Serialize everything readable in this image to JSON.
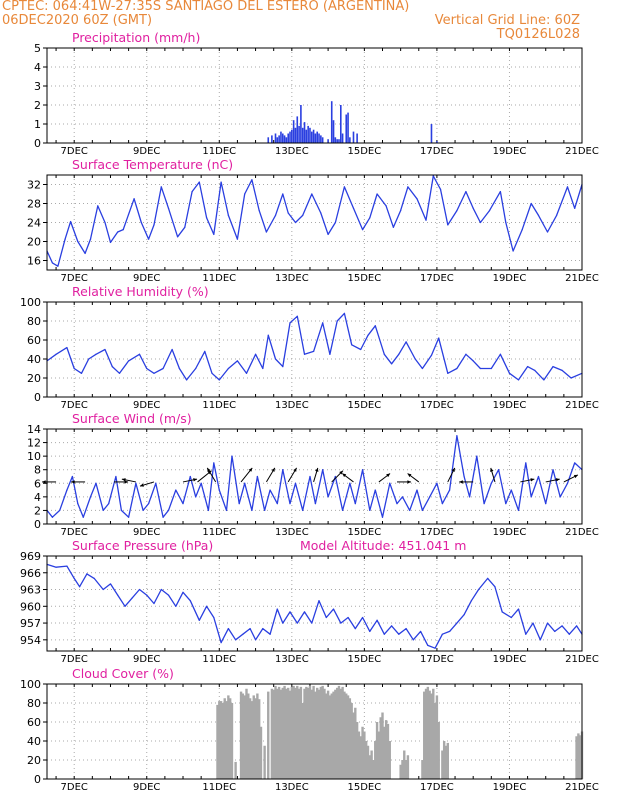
{
  "header": {
    "line1_left": "CPTEC:   064:41W-27:35S   SANTIAGO DEL ESTERO (ARGENTINA)",
    "line2_left": "06DEC2020 60Z (GMT)",
    "line2_right": "Vertical Grid Line: 60Z",
    "line3_right": "TQ0126L028"
  },
  "colors": {
    "header": "#e8883a",
    "panel_title": "#e020a0",
    "series_line": "#2a3fe0",
    "precip_bar": "#2a3fe0",
    "cloud_bar": "#a8a8a8",
    "grid": "#aaaaaa"
  },
  "chart_data": [
    {
      "type": "bar",
      "title": "Precipitation (mm/h)",
      "ylim": [
        0,
        5
      ],
      "yticks": [
        0,
        1,
        2,
        3,
        4,
        5
      ],
      "xlim": [
        6.25,
        21
      ],
      "xticks": [
        7,
        9,
        11,
        13,
        15,
        17,
        19,
        21
      ],
      "xticklabels": [
        "7DEC",
        "9DEC",
        "11DEC",
        "13DEC",
        "15DEC",
        "17DEC",
        "19DEC",
        "21DEC"
      ],
      "grid": true,
      "x": [
        12.35,
        12.45,
        12.55,
        12.6,
        12.65,
        12.7,
        12.75,
        12.8,
        12.85,
        12.9,
        12.95,
        13.0,
        13.05,
        13.1,
        13.15,
        13.2,
        13.25,
        13.3,
        13.35,
        13.4,
        13.45,
        13.5,
        13.55,
        13.6,
        13.65,
        13.7,
        13.75,
        13.8,
        13.85,
        14.0,
        14.1,
        14.15,
        14.2,
        14.25,
        14.3,
        14.35,
        14.4,
        14.5,
        14.55,
        14.6,
        14.7,
        14.8,
        16.85,
        17.0
      ],
      "values": [
        0.3,
        0.4,
        0.5,
        0.3,
        0.4,
        0.6,
        0.5,
        0.4,
        0.3,
        0.5,
        0.6,
        0.7,
        1.2,
        0.8,
        1.4,
        0.9,
        2.0,
        0.8,
        1.1,
        0.7,
        0.9,
        0.8,
        0.6,
        0.7,
        0.5,
        0.6,
        0.5,
        0.4,
        0.3,
        0.2,
        2.2,
        1.2,
        0.3,
        0.2,
        0.2,
        2.0,
        0.5,
        1.5,
        1.6,
        0.3,
        0.6,
        0.5,
        1.0,
        0.1
      ]
    },
    {
      "type": "line",
      "title": "Surface Temperature (nC)",
      "ylim": [
        14,
        34
      ],
      "yticks": [
        16,
        20,
        24,
        28,
        32
      ],
      "xlim": [
        6.25,
        21
      ],
      "xticks": [
        7,
        9,
        11,
        13,
        15,
        17,
        19,
        21
      ],
      "xticklabels": [
        "7DEC",
        "9DEC",
        "11DEC",
        "13DEC",
        "15DEC",
        "17DEC",
        "19DEC",
        "21DEC"
      ],
      "grid": true,
      "x": [
        6.25,
        6.4,
        6.55,
        6.75,
        6.9,
        7.1,
        7.3,
        7.45,
        7.65,
        7.85,
        8.0,
        8.2,
        8.35,
        8.65,
        8.85,
        9.05,
        9.2,
        9.4,
        9.6,
        9.85,
        10.05,
        10.25,
        10.45,
        10.65,
        10.85,
        11.05,
        11.25,
        11.5,
        11.7,
        11.9,
        12.1,
        12.3,
        12.55,
        12.75,
        12.9,
        13.1,
        13.3,
        13.55,
        13.8,
        14.0,
        14.2,
        14.45,
        14.7,
        14.95,
        15.15,
        15.35,
        15.6,
        15.8,
        16.0,
        16.2,
        16.45,
        16.7,
        16.9,
        17.1,
        17.3,
        17.55,
        17.8,
        18.0,
        18.2,
        18.45,
        18.75,
        18.9,
        19.1,
        19.35,
        19.6,
        19.8,
        20.05,
        20.3,
        20.6,
        20.8,
        21.0
      ],
      "values": [
        18,
        15.5,
        14.8,
        20.5,
        24.2,
        20,
        17.5,
        20.5,
        27.5,
        24,
        19.8,
        22,
        22.5,
        29,
        24,
        20.5,
        23.5,
        31.5,
        27,
        21,
        23,
        30.5,
        32.5,
        25,
        21.5,
        32.5,
        25.5,
        20.5,
        30,
        33,
        26.5,
        22,
        25.5,
        30,
        26,
        24,
        25.5,
        30,
        26,
        21.5,
        24,
        31.5,
        27,
        22.5,
        25,
        30,
        27.5,
        23,
        26.5,
        31.5,
        29,
        24.5,
        33.8,
        31,
        23.5,
        26.5,
        30.5,
        27,
        24,
        26.5,
        30.5,
        24,
        18,
        22.5,
        28,
        25.5,
        22,
        25.5,
        31.5,
        27,
        32
      ]
    },
    {
      "type": "line",
      "title": "Relative Humidity (%)",
      "ylim": [
        0,
        100
      ],
      "yticks": [
        0,
        20,
        40,
        60,
        80,
        100
      ],
      "xlim": [
        6.25,
        21
      ],
      "xticks": [
        7,
        9,
        11,
        13,
        15,
        17,
        19,
        21
      ],
      "xticklabels": [
        "7DEC",
        "9DEC",
        "11DEC",
        "13DEC",
        "15DEC",
        "17DEC",
        "19DEC",
        "21DEC"
      ],
      "grid": true,
      "x": [
        6.25,
        6.5,
        6.8,
        7.0,
        7.2,
        7.4,
        7.6,
        7.85,
        8.05,
        8.25,
        8.5,
        8.8,
        9.0,
        9.2,
        9.45,
        9.7,
        9.9,
        10.1,
        10.35,
        10.6,
        10.8,
        11.0,
        11.25,
        11.5,
        11.75,
        12.0,
        12.2,
        12.35,
        12.55,
        12.75,
        12.95,
        13.15,
        13.35,
        13.6,
        13.85,
        14.05,
        14.25,
        14.45,
        14.65,
        14.9,
        15.1,
        15.3,
        15.55,
        15.75,
        15.95,
        16.15,
        16.4,
        16.6,
        16.85,
        17.05,
        17.3,
        17.55,
        17.8,
        18.0,
        18.2,
        18.5,
        18.75,
        19.0,
        19.25,
        19.5,
        19.7,
        19.95,
        20.2,
        20.45,
        20.7,
        21.0
      ],
      "values": [
        38,
        45,
        52,
        30,
        25,
        40,
        45,
        50,
        32,
        25,
        38,
        45,
        30,
        25,
        30,
        50,
        30,
        18,
        30,
        48,
        25,
        18,
        30,
        38,
        25,
        45,
        30,
        65,
        40,
        32,
        78,
        85,
        45,
        48,
        78,
        45,
        80,
        88,
        55,
        50,
        65,
        75,
        45,
        35,
        45,
        58,
        40,
        30,
        44,
        62,
        25,
        30,
        45,
        38,
        30,
        30,
        45,
        25,
        18,
        32,
        28,
        18,
        32,
        28,
        20,
        25
      ]
    },
    {
      "type": "line",
      "title": "Surface Wind (m/s)",
      "ylim": [
        0,
        14
      ],
      "yticks": [
        0,
        2,
        4,
        6,
        8,
        10,
        12,
        14
      ],
      "xlim": [
        6.25,
        21
      ],
      "xticks": [
        7,
        9,
        11,
        13,
        15,
        17,
        19,
        21
      ],
      "xticklabels": [
        "7DEC",
        "9DEC",
        "11DEC",
        "13DEC",
        "15DEC",
        "17DEC",
        "19DEC",
        "21DEC"
      ],
      "grid": true,
      "x": [
        6.25,
        6.4,
        6.6,
        6.8,
        6.95,
        7.1,
        7.25,
        7.45,
        7.6,
        7.8,
        7.95,
        8.15,
        8.3,
        8.5,
        8.7,
        8.9,
        9.05,
        9.25,
        9.45,
        9.6,
        9.8,
        10.0,
        10.2,
        10.35,
        10.5,
        10.7,
        10.85,
        11.0,
        11.2,
        11.35,
        11.55,
        11.7,
        11.9,
        12.05,
        12.25,
        12.4,
        12.6,
        12.75,
        12.95,
        13.1,
        13.3,
        13.5,
        13.65,
        13.85,
        14.0,
        14.2,
        14.4,
        14.6,
        14.75,
        14.95,
        15.15,
        15.3,
        15.5,
        15.7,
        15.9,
        16.05,
        16.25,
        16.45,
        16.6,
        16.8,
        17.0,
        17.15,
        17.35,
        17.55,
        17.75,
        17.9,
        18.1,
        18.3,
        18.5,
        18.7,
        18.9,
        19.05,
        19.25,
        19.45,
        19.6,
        19.8,
        20.0,
        20.2,
        20.4,
        20.6,
        20.8,
        21.0
      ],
      "values": [
        2,
        1,
        2,
        5,
        7,
        3,
        1,
        4,
        6,
        2,
        3,
        7,
        2,
        1,
        6,
        2,
        3,
        6,
        1,
        2,
        5,
        3,
        7,
        4,
        6,
        2,
        9,
        5,
        2,
        10,
        3,
        6,
        2,
        7,
        2,
        5,
        3,
        8,
        3,
        6,
        2,
        7,
        3,
        8,
        4,
        7,
        2,
        6,
        3,
        8,
        2,
        5,
        1,
        6,
        3,
        4,
        2,
        5,
        2,
        4,
        6,
        3,
        5,
        13,
        7,
        4,
        10,
        3,
        6,
        8,
        3,
        5,
        2,
        9,
        4,
        7,
        3,
        8,
        4,
        6,
        9,
        8
      ],
      "vectors": [
        {
          "x": 6.5,
          "u": -1,
          "v": 0
        },
        {
          "x": 7.3,
          "u": -1,
          "v": 0
        },
        {
          "x": 8.1,
          "u": 1,
          "v": 0
        },
        {
          "x": 8.7,
          "u": -1,
          "v": 0.2
        },
        {
          "x": 9.2,
          "u": -1,
          "v": -0.3
        },
        {
          "x": 10.0,
          "u": 1,
          "v": 0.2
        },
        {
          "x": 10.4,
          "u": 1,
          "v": 0.8
        },
        {
          "x": 10.9,
          "u": -0.6,
          "v": 1
        },
        {
          "x": 11.6,
          "u": 0.8,
          "v": 1
        },
        {
          "x": 12.3,
          "u": 0.6,
          "v": 1
        },
        {
          "x": 12.9,
          "u": 0.6,
          "v": 1
        },
        {
          "x": 13.6,
          "u": 0.3,
          "v": 1
        },
        {
          "x": 14.1,
          "u": 0.8,
          "v": 0.8
        },
        {
          "x": 14.7,
          "u": -0.8,
          "v": 0.6
        },
        {
          "x": 15.4,
          "u": 0.8,
          "v": 0.6
        },
        {
          "x": 15.9,
          "u": 1,
          "v": 0
        },
        {
          "x": 16.5,
          "u": -0.8,
          "v": 0.6
        },
        {
          "x": 17.3,
          "u": 0.5,
          "v": 1
        },
        {
          "x": 18.0,
          "u": -1,
          "v": 0
        },
        {
          "x": 18.6,
          "u": -0.3,
          "v": 1
        },
        {
          "x": 19.3,
          "u": 1,
          "v": 0.2
        },
        {
          "x": 20.0,
          "u": 1,
          "v": 0.2
        },
        {
          "x": 20.5,
          "u": 1,
          "v": 0.5
        }
      ]
    },
    {
      "type": "line",
      "title": "Surface Pressure (hPa)",
      "annotation": "Model Altitude: 451.041 m",
      "ylim": [
        952,
        969
      ],
      "yticks": [
        954,
        957,
        960,
        963,
        966,
        969
      ],
      "xlim": [
        6.25,
        21
      ],
      "xticks": [
        7,
        9,
        11,
        13,
        15,
        17,
        19,
        21
      ],
      "xticklabels": [
        "7DEC",
        "9DEC",
        "11DEC",
        "13DEC",
        "15DEC",
        "17DEC",
        "19DEC",
        "21DEC"
      ],
      "grid": true,
      "x": [
        6.25,
        6.5,
        6.8,
        7.0,
        7.15,
        7.35,
        7.55,
        7.8,
        8.0,
        8.2,
        8.4,
        8.6,
        8.8,
        9.0,
        9.2,
        9.4,
        9.6,
        9.8,
        10.0,
        10.2,
        10.45,
        10.65,
        10.85,
        11.05,
        11.25,
        11.45,
        11.65,
        11.85,
        12.0,
        12.2,
        12.4,
        12.6,
        12.75,
        12.95,
        13.15,
        13.35,
        13.55,
        13.75,
        13.95,
        14.15,
        14.35,
        14.55,
        14.75,
        14.95,
        15.15,
        15.35,
        15.55,
        15.75,
        15.95,
        16.15,
        16.35,
        16.55,
        16.75,
        16.95,
        17.15,
        17.35,
        17.55,
        17.75,
        17.95,
        18.15,
        18.4,
        18.6,
        18.8,
        19.05,
        19.25,
        19.45,
        19.65,
        19.85,
        20.05,
        20.25,
        20.45,
        20.65,
        20.85,
        21.0
      ],
      "values": [
        967.5,
        967,
        967.2,
        965,
        963.5,
        965.8,
        965,
        963,
        964,
        962,
        960,
        961.5,
        963,
        962,
        960.5,
        963,
        962,
        960,
        962.5,
        961,
        957.5,
        960,
        958,
        953.5,
        956,
        954,
        955,
        956,
        954,
        956,
        955,
        959.5,
        957,
        959,
        957,
        959,
        957,
        961,
        958,
        959.5,
        957,
        958,
        956,
        958,
        955.5,
        957.5,
        955,
        956.5,
        955,
        956,
        954,
        955.5,
        953,
        952.5,
        955,
        955.5,
        957,
        958.5,
        961,
        963,
        965,
        963.5,
        959,
        958,
        959.5,
        955,
        957,
        954,
        957,
        955.5,
        956.5,
        955,
        956.5,
        955
      ]
    },
    {
      "type": "bar",
      "title": "Cloud Cover (%)",
      "ylim": [
        0,
        100
      ],
      "yticks": [
        0,
        20,
        40,
        60,
        80,
        100
      ],
      "xlim": [
        6.25,
        21
      ],
      "xticks": [
        7,
        9,
        11,
        13,
        15,
        17,
        19,
        21
      ],
      "xticklabels": [
        "7DEC",
        "9DEC",
        "11DEC",
        "13DEC",
        "15DEC",
        "17DEC",
        "19DEC",
        "21DEC"
      ],
      "grid": true,
      "x": [
        10.95,
        11.0,
        11.05,
        11.1,
        11.15,
        11.2,
        11.25,
        11.3,
        11.35,
        11.45,
        11.6,
        11.65,
        11.7,
        11.75,
        11.8,
        11.85,
        11.9,
        11.95,
        12.0,
        12.05,
        12.1,
        12.15,
        12.25,
        12.35,
        12.45,
        12.5,
        12.55,
        12.6,
        12.65,
        12.7,
        12.75,
        12.8,
        12.85,
        12.9,
        12.95,
        13.0,
        13.05,
        13.1,
        13.15,
        13.2,
        13.25,
        13.3,
        13.35,
        13.4,
        13.45,
        13.5,
        13.55,
        13.6,
        13.65,
        13.7,
        13.75,
        13.8,
        13.85,
        13.9,
        13.95,
        14.0,
        14.05,
        14.1,
        14.15,
        14.2,
        14.25,
        14.3,
        14.35,
        14.4,
        14.45,
        14.5,
        14.55,
        14.6,
        14.65,
        14.7,
        14.75,
        14.8,
        14.85,
        14.9,
        14.95,
        15.0,
        15.05,
        15.1,
        15.15,
        15.2,
        15.25,
        15.3,
        15.35,
        15.4,
        15.45,
        15.5,
        15.55,
        15.6,
        15.65,
        15.7,
        16.0,
        16.05,
        16.1,
        16.15,
        16.2,
        16.6,
        16.65,
        16.7,
        16.75,
        16.8,
        16.85,
        16.9,
        16.95,
        17.0,
        17.05,
        17.15,
        17.2,
        17.25,
        17.3,
        20.85,
        20.9,
        20.95,
        21.0
      ],
      "values": [
        78,
        82,
        82,
        80,
        85,
        82,
        88,
        85,
        80,
        18,
        92,
        90,
        88,
        95,
        90,
        85,
        82,
        88,
        85,
        90,
        84,
        55,
        35,
        92,
        95,
        94,
        98,
        95,
        97,
        94,
        96,
        98,
        95,
        96,
        93,
        97,
        98,
        96,
        98,
        95,
        97,
        80,
        95,
        97,
        96,
        98,
        94,
        98,
        92,
        96,
        94,
        97,
        98,
        95,
        90,
        93,
        88,
        90,
        92,
        94,
        96,
        98,
        95,
        97,
        92,
        90,
        88,
        85,
        80,
        70,
        75,
        60,
        50,
        45,
        55,
        50,
        40,
        35,
        25,
        30,
        20,
        40,
        60,
        50,
        65,
        70,
        55,
        62,
        58,
        40,
        15,
        20,
        30,
        20,
        25,
        20,
        92,
        95,
        97,
        93,
        90,
        95,
        80,
        88,
        60,
        30,
        40,
        35,
        38,
        45,
        48,
        46,
        50
      ]
    }
  ]
}
